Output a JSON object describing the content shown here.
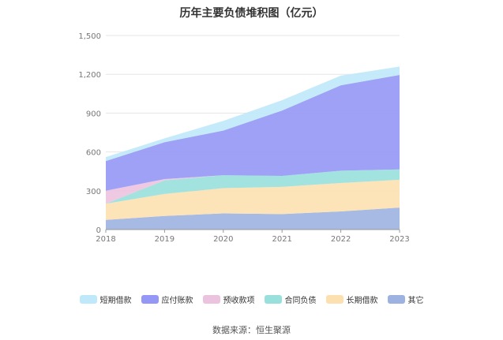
{
  "chart_data": {
    "type": "area",
    "stacked": true,
    "title": "历年主要负债堆积图（亿元）",
    "x": [
      "2018",
      "2019",
      "2020",
      "2021",
      "2022",
      "2023"
    ],
    "ylim": [
      0,
      1500
    ],
    "yticks": [
      "0",
      "300",
      "600",
      "900",
      "1,200",
      "1,500"
    ],
    "grid": true,
    "legend_position": "bottom",
    "series": [
      {
        "name": "其它",
        "color": "#9db2e0",
        "values": [
          75,
          105,
          125,
          120,
          140,
          170
        ]
      },
      {
        "name": "长期借款",
        "color": "#fde0b0",
        "values": [
          125,
          170,
          195,
          210,
          220,
          215
        ]
      },
      {
        "name": "合同负债",
        "color": "#99e0dc",
        "values": [
          0,
          105,
          100,
          85,
          95,
          80
        ]
      },
      {
        "name": "预收款项",
        "color": "#ecc3de",
        "values": [
          100,
          10,
          0,
          0,
          0,
          0
        ]
      },
      {
        "name": "应付账款",
        "color": "#9497f5",
        "values": [
          230,
          285,
          345,
          505,
          660,
          730
        ]
      },
      {
        "name": "短期借款",
        "color": "#bfe9fb",
        "values": [
          30,
          30,
          75,
          80,
          75,
          65
        ]
      }
    ],
    "legend_order": [
      "短期借款",
      "应付账款",
      "预收款项",
      "合同负债",
      "长期借款",
      "其它"
    ]
  },
  "source": "数据来源：恒生聚源"
}
